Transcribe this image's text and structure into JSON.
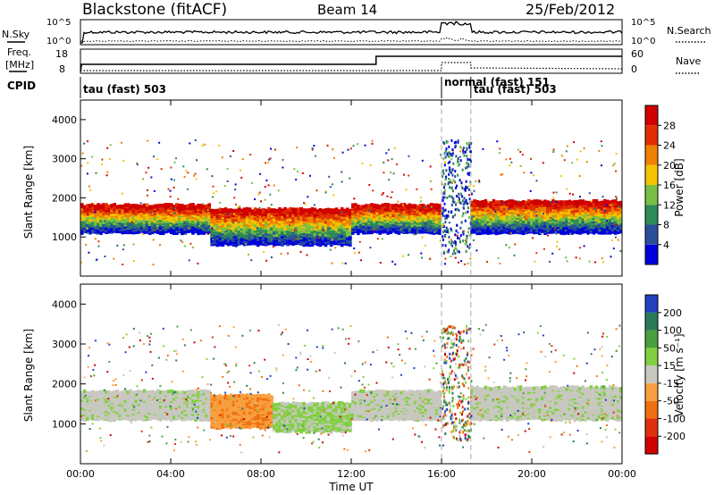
{
  "header": {
    "station": "Blackstone (fitACF)",
    "beam": "Beam 14",
    "date": "25/Feb/2012"
  },
  "strip_labels": {
    "nsky": "N.Sky",
    "nsearch": "N.Search",
    "freq": "Freq.",
    "freq_unit": "[MHz]",
    "nave": "Nave",
    "cpid": "CPID"
  },
  "strip_ticks": {
    "noise_left": [
      "10^5",
      "10^0"
    ],
    "noise_right": [
      "10^5",
      "10^0"
    ],
    "freq_left": [
      "18",
      "8"
    ],
    "nave_right": [
      "60",
      "0"
    ]
  },
  "cpid_segments": [
    {
      "label": "tau (fast) 503",
      "start_h": 0,
      "end_h": 16
    },
    {
      "label": "normal (fast) 151",
      "start_h": 16,
      "end_h": 17.3
    },
    {
      "label": "tau (fast) 503",
      "start_h": 17.3,
      "end_h": 24
    }
  ],
  "chart_data": [
    {
      "type": "heatmap",
      "name": "power",
      "ylabel": "Slant Range [km]",
      "xlabel": "",
      "ylim": [
        0,
        4500
      ],
      "xlim_hours": [
        0,
        24
      ],
      "yticks": [
        "1000",
        "2000",
        "3000",
        "4000"
      ],
      "xticks": [
        "00:00",
        "04:00",
        "08:00",
        "12:00",
        "16:00",
        "20:00",
        "00:00"
      ],
      "colorbar": {
        "label": "Power [dB]",
        "ticks": [
          "4",
          "8",
          "12",
          "16",
          "20",
          "24",
          "28"
        ],
        "colors": [
          "#0000dd",
          "#2a4f9a",
          "#2e8b57",
          "#77c043",
          "#f5c400",
          "#f08000",
          "#e03000",
          "#d00000"
        ]
      },
      "echo_bands": [
        {
          "start_h": 0.0,
          "end_h": 5.8,
          "lower_km": 1100,
          "upper_km": 1800
        },
        {
          "start_h": 5.8,
          "end_h": 12.0,
          "lower_km": 800,
          "upper_km": 1700
        },
        {
          "start_h": 12.0,
          "end_h": 16.0,
          "lower_km": 1100,
          "upper_km": 1800
        },
        {
          "start_h": 17.3,
          "end_h": 24.0,
          "lower_km": 1100,
          "upper_km": 1900
        }
      ]
    },
    {
      "type": "heatmap",
      "name": "velocity",
      "ylabel": "Slant Range [km]",
      "xlabel": "Time UT",
      "ylim": [
        0,
        4500
      ],
      "xlim_hours": [
        0,
        24
      ],
      "yticks": [
        "1000",
        "2000",
        "3000",
        "4000"
      ],
      "xticks": [
        "00:00",
        "04:00",
        "08:00",
        "12:00",
        "16:00",
        "20:00",
        "00:00"
      ],
      "colorbar": {
        "label": "Velocity [m s⁻¹]",
        "ticks": [
          "200",
          "100",
          "50",
          "15",
          "-15",
          "-50",
          "-100",
          "-200"
        ],
        "colors": [
          "#2040c0",
          "#2a7a5a",
          "#4aa040",
          "#80d040",
          "#c8c8c0",
          "#f8a040",
          "#f07010",
          "#e03010",
          "#d00000"
        ]
      },
      "echo_bands": [
        {
          "start_h": 0.0,
          "end_h": 5.8,
          "lower_km": 1100,
          "upper_km": 1800,
          "dominant": "-15..15"
        },
        {
          "start_h": 5.8,
          "end_h": 8.5,
          "lower_km": 900,
          "upper_km": 1700,
          "dominant": "-100..-15"
        },
        {
          "start_h": 8.5,
          "end_h": 12.0,
          "lower_km": 800,
          "upper_km": 1500,
          "dominant": "15..50"
        },
        {
          "start_h": 12.0,
          "end_h": 16.0,
          "lower_km": 1100,
          "upper_km": 1800,
          "dominant": "-15..15"
        },
        {
          "start_h": 17.3,
          "end_h": 24.0,
          "lower_km": 1100,
          "upper_km": 1900,
          "dominant": "-15..15"
        }
      ]
    }
  ]
}
